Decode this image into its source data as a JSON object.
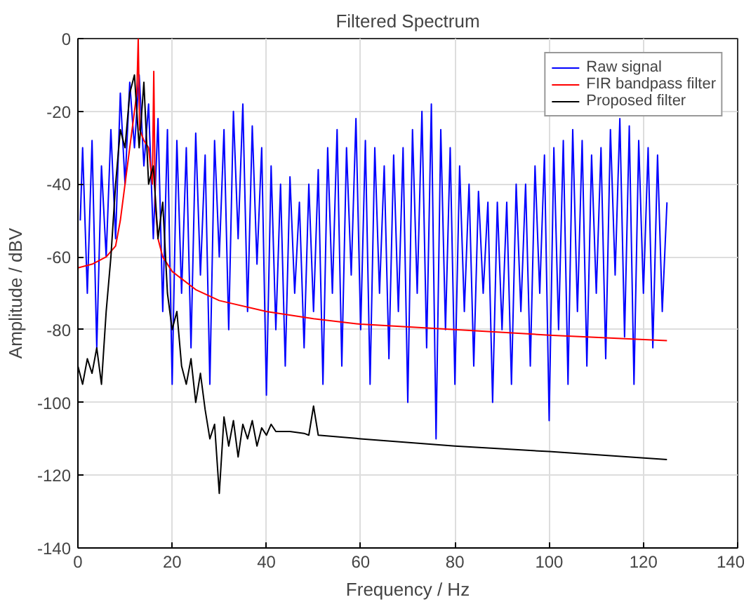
{
  "chart_data": {
    "type": "line",
    "title": "Filtered Spectrum",
    "xlabel": "Frequency / Hz",
    "ylabel": "Amplitude / dBV",
    "xlim": [
      0,
      140
    ],
    "ylim": [
      -140,
      0
    ],
    "xticks": [
      0,
      20,
      40,
      60,
      80,
      100,
      120,
      140
    ],
    "yticks": [
      -140,
      -120,
      -100,
      -80,
      -60,
      -40,
      -20,
      0
    ],
    "grid": true,
    "legend": "top right",
    "marker": "none",
    "line_style": "solid",
    "series": [
      {
        "name": "Raw signal",
        "color": "#0000ff",
        "x": [
          0.5,
          1,
          2,
          3,
          4,
          5,
          6,
          7,
          8,
          9,
          10,
          11,
          12,
          13,
          14,
          15,
          16,
          17,
          18,
          19,
          20,
          21,
          22,
          23,
          24,
          25,
          26,
          27,
          28,
          29,
          30,
          31,
          32,
          33,
          34,
          35,
          36,
          37,
          38,
          39,
          40,
          41,
          42,
          43,
          44,
          45,
          46,
          47,
          48,
          49,
          50,
          51,
          52,
          53,
          54,
          55,
          56,
          57,
          58,
          59,
          60,
          61,
          62,
          63,
          64,
          65,
          66,
          67,
          68,
          69,
          70,
          71,
          72,
          73,
          74,
          75,
          76,
          77,
          78,
          79,
          80,
          81,
          82,
          83,
          84,
          85,
          86,
          87,
          88,
          89,
          90,
          91,
          92,
          93,
          94,
          95,
          96,
          97,
          98,
          99,
          100,
          101,
          102,
          103,
          104,
          105,
          106,
          107,
          108,
          109,
          110,
          111,
          112,
          113,
          114,
          115,
          116,
          117,
          118,
          119,
          120,
          121,
          122,
          123,
          124,
          125
        ],
        "values": [
          -50,
          -30,
          -70,
          -28,
          -85,
          -35,
          -60,
          -25,
          -55,
          -15,
          -40,
          -12,
          -30,
          -10,
          -35,
          -18,
          -55,
          -22,
          -75,
          -25,
          -95,
          -28,
          -70,
          -30,
          -85,
          -26,
          -65,
          -32,
          -95,
          -28,
          -60,
          -25,
          -80,
          -20,
          -55,
          -18,
          -75,
          -24,
          -62,
          -30,
          -98,
          -35,
          -80,
          -40,
          -90,
          -38,
          -70,
          -45,
          -85,
          -40,
          -75,
          -36,
          -95,
          -30,
          -70,
          -25,
          -90,
          -30,
          -65,
          -22,
          -80,
          -28,
          -95,
          -30,
          -70,
          -35,
          -88,
          -32,
          -75,
          -30,
          -100,
          -25,
          -70,
          -20,
          -85,
          -18,
          -110,
          -25,
          -80,
          -30,
          -95,
          -35,
          -75,
          -40,
          -90,
          -42,
          -70,
          -45,
          -100,
          -45,
          -80,
          -45,
          -95,
          -40,
          -75,
          -40,
          -90,
          -35,
          -70,
          -32,
          -105,
          -30,
          -80,
          -28,
          -95,
          -25,
          -75,
          -28,
          -90,
          -32,
          -70,
          -30,
          -88,
          -25,
          -65,
          -22,
          -82,
          -24,
          -95,
          -28,
          -70,
          -30,
          -85,
          -32,
          -75,
          -45
        ]
      },
      {
        "name": "FIR bandpass filter",
        "color": "#ff0000",
        "x": [
          0,
          3,
          6,
          8,
          9,
          10,
          11,
          12,
          12.5,
          12.8,
          13.1,
          14,
          15,
          15.8,
          16.1,
          16.4,
          17,
          18,
          20,
          25,
          30,
          40,
          50,
          60,
          80,
          100,
          125
        ],
        "values": [
          -63,
          -62,
          -60,
          -57,
          -50,
          -40,
          -30,
          -20,
          -15,
          0,
          -25,
          -28,
          -30,
          -40,
          -9,
          -45,
          -55,
          -60,
          -64,
          -69,
          -72,
          -75,
          -77,
          -78.5,
          -80,
          -81.5,
          -83
        ]
      },
      {
        "name": "Proposed filter",
        "color": "#000000",
        "x": [
          0,
          1,
          2,
          3,
          4,
          5,
          6,
          7,
          8,
          9,
          10,
          11,
          12,
          13,
          14,
          15,
          16,
          17,
          18,
          19,
          20,
          21,
          22,
          23,
          24,
          25,
          26,
          27,
          28,
          29,
          30,
          31,
          32,
          33,
          34,
          35,
          36,
          37,
          38,
          39,
          40,
          41,
          42,
          45,
          48,
          49,
          50,
          51,
          60,
          80,
          100,
          125
        ],
        "values": [
          -90,
          -95,
          -88,
          -92,
          -85,
          -95,
          -75,
          -60,
          -40,
          -25,
          -30,
          -15,
          -10,
          -30,
          -12,
          -40,
          -35,
          -55,
          -45,
          -70,
          -80,
          -75,
          -90,
          -95,
          -88,
          -100,
          -92,
          -102,
          -110,
          -106,
          -125,
          -104,
          -112,
          -105,
          -115,
          -106,
          -110,
          -105,
          -112,
          -107,
          -109,
          -106,
          -108,
          -108,
          -108.5,
          -109,
          -101,
          -109,
          -110,
          -112,
          -113.5,
          -115.7
        ]
      }
    ]
  }
}
